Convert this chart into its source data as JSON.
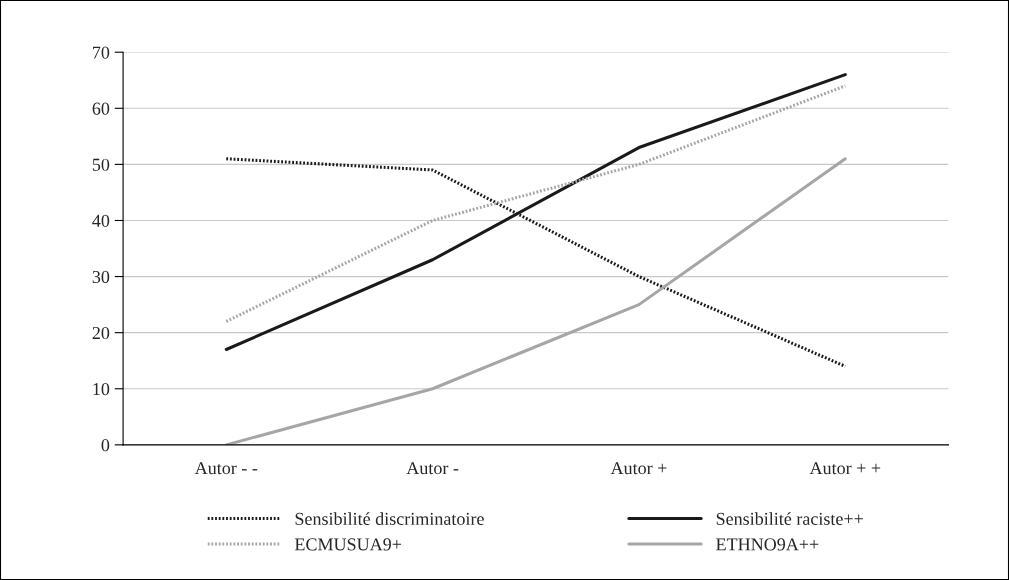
{
  "chart_data": {
    "type": "line",
    "categories": [
      "Autor - -",
      "Autor -",
      "Autor +",
      "Autor + +"
    ],
    "series": [
      {
        "name": "Sensibilité discriminatoire",
        "color": "#1a1a1a",
        "line_style": "dotted",
        "values": [
          51,
          49,
          30,
          14
        ]
      },
      {
        "name": "Sensibilité raciste++",
        "color": "#1a1a1a",
        "line_style": "solid",
        "values": [
          17,
          33,
          53,
          66
        ]
      },
      {
        "name": "ECMUSUA9+",
        "color": "#a6a6a6",
        "line_style": "dotted",
        "values": [
          22,
          40,
          50,
          64
        ]
      },
      {
        "name": "ETHNO9A++",
        "color": "#a6a6a6",
        "line_style": "solid",
        "values": [
          0,
          10,
          25,
          51
        ]
      }
    ],
    "ylim": [
      0,
      70
    ],
    "yticks": [
      0,
      10,
      20,
      30,
      40,
      50,
      60,
      70
    ],
    "grid": "y",
    "legend": "bottom",
    "marker": "none"
  }
}
